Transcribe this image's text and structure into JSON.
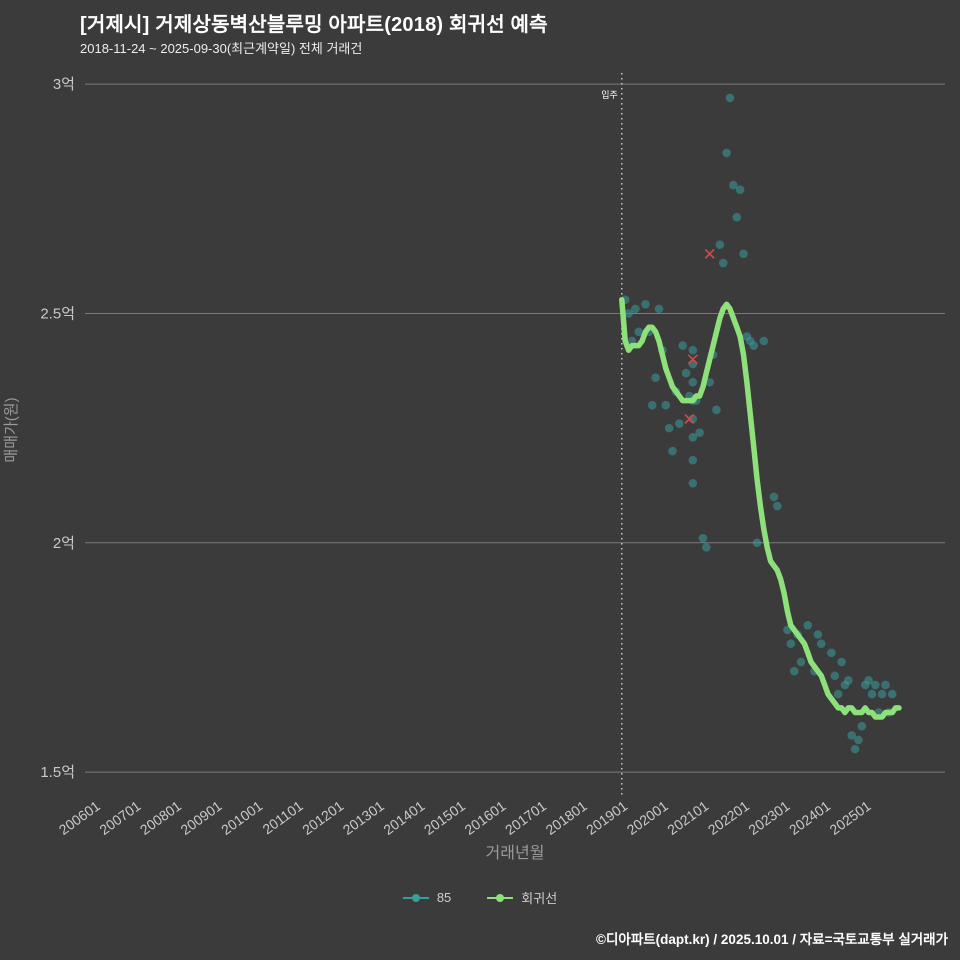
{
  "header": {
    "title": "[거제시] 거제상동벽산블루밍 아파트(2018) 회귀선 예측",
    "subtitle": "2018-11-24 ~ 2025-09-30(최근계약일) 전체 거래건"
  },
  "footer": {
    "text": "©디아파트(dapt.kr) / 2025.10.01 / 자료=국토교통부 실거래가"
  },
  "colors": {
    "background": "#3b3b3b",
    "grid": "#7a7a7a",
    "tick_text": "#c9c9c9",
    "axis_title_text": "#9a9a9a",
    "title_text": "#ffffff",
    "scatter": "#3a9d9d",
    "regression": "#8ee07a",
    "flag_x": "#cd4b4b",
    "movein_line": "#eaeaea"
  },
  "chart_data": {
    "type": "scatter",
    "title": "[거제시] 거제상동벽산블루밍 아파트(2018) 회귀선 예측",
    "xlabel": "거래년월",
    "ylabel": "매매가(원)",
    "xlim": [
      2005.6,
      2026.8
    ],
    "ylim": [
      1.45,
      3.02
    ],
    "grid": "horizontal-only",
    "legend_position": "bottom-center",
    "y_ticks": [
      {
        "label": "3억",
        "value": 3.0
      },
      {
        "label": "2.5억",
        "value": 2.5
      },
      {
        "label": "2억",
        "value": 2.0
      },
      {
        "label": "1.5억",
        "value": 1.5
      }
    ],
    "x_ticks": [
      "200601",
      "200701",
      "200801",
      "200901",
      "201001",
      "201101",
      "201201",
      "201301",
      "201401",
      "201501",
      "201601",
      "201701",
      "201801",
      "201901",
      "202001",
      "202101",
      "202201",
      "202301",
      "202401",
      "202501"
    ],
    "annotation": {
      "label": "입주",
      "x": "2018-11"
    },
    "series": [
      {
        "name": "85",
        "type": "scatter",
        "color": "#3a9d9d",
        "unit": "억원",
        "points": [
          [
            "2018-12",
            2.53
          ],
          [
            "2019-01",
            2.5
          ],
          [
            "2019-02",
            2.44
          ],
          [
            "2019-03",
            2.51
          ],
          [
            "2019-04",
            2.46
          ],
          [
            "2019-06",
            2.52
          ],
          [
            "2019-07",
            2.46
          ],
          [
            "2019-08",
            2.3
          ],
          [
            "2019-09",
            2.36
          ],
          [
            "2019-10",
            2.51
          ],
          [
            "2019-11",
            2.42
          ],
          [
            "2019-12",
            2.3
          ],
          [
            "2020-01",
            2.25
          ],
          [
            "2020-02",
            2.2
          ],
          [
            "2020-03",
            2.33
          ],
          [
            "2020-04",
            2.26
          ],
          [
            "2020-05",
            2.43
          ],
          [
            "2020-06",
            2.37
          ],
          [
            "2020-07",
            2.32
          ],
          [
            "2020-08",
            2.42
          ],
          [
            "2020-08",
            2.39
          ],
          [
            "2020-08",
            2.35
          ],
          [
            "2020-08",
            2.31
          ],
          [
            "2020-08",
            2.27
          ],
          [
            "2020-08",
            2.23
          ],
          [
            "2020-08",
            2.18
          ],
          [
            "2020-08",
            2.13
          ],
          [
            "2020-09",
            2.31
          ],
          [
            "2020-10",
            2.24
          ],
          [
            "2020-11",
            2.01
          ],
          [
            "2020-12",
            1.99
          ],
          [
            "2021-01",
            2.35
          ],
          [
            "2021-02",
            2.41
          ],
          [
            "2021-03",
            2.29
          ],
          [
            "2021-04",
            2.65
          ],
          [
            "2021-05",
            2.61
          ],
          [
            "2021-06",
            2.85
          ],
          [
            "2021-07",
            2.97
          ],
          [
            "2021-08",
            2.78
          ],
          [
            "2021-09",
            2.71
          ],
          [
            "2021-10",
            2.77
          ],
          [
            "2021-11",
            2.63
          ],
          [
            "2021-12",
            2.45
          ],
          [
            "2022-01",
            2.44
          ],
          [
            "2022-02",
            2.43
          ],
          [
            "2022-03",
            2.0
          ],
          [
            "2022-05",
            2.44
          ],
          [
            "2022-08",
            2.1
          ],
          [
            "2022-09",
            2.08
          ],
          [
            "2022-12",
            1.81
          ],
          [
            "2023-01",
            1.78
          ],
          [
            "2023-02",
            1.72
          ],
          [
            "2023-03",
            1.8
          ],
          [
            "2023-04",
            1.74
          ],
          [
            "2023-06",
            1.82
          ],
          [
            "2023-08",
            1.72
          ],
          [
            "2023-09",
            1.8
          ],
          [
            "2023-10",
            1.78
          ],
          [
            "2024-01",
            1.76
          ],
          [
            "2024-02",
            1.71
          ],
          [
            "2024-03",
            1.67
          ],
          [
            "2024-04",
            1.74
          ],
          [
            "2024-05",
            1.69
          ],
          [
            "2024-06",
            1.7
          ],
          [
            "2024-07",
            1.58
          ],
          [
            "2024-08",
            1.55
          ],
          [
            "2024-09",
            1.57
          ],
          [
            "2024-10",
            1.6
          ],
          [
            "2024-11",
            1.69
          ],
          [
            "2024-12",
            1.7
          ],
          [
            "2025-01",
            1.67
          ],
          [
            "2025-02",
            1.69
          ],
          [
            "2025-03",
            1.63
          ],
          [
            "2025-04",
            1.67
          ],
          [
            "2025-05",
            1.69
          ],
          [
            "2025-06",
            1.63
          ],
          [
            "2025-07",
            1.67
          ]
        ]
      },
      {
        "name": "회귀선",
        "type": "line",
        "color": "#8ee07a",
        "unit": "억원",
        "points": [
          [
            "2018-11",
            2.53
          ],
          [
            "2018-12",
            2.44
          ],
          [
            "2019-01",
            2.42
          ],
          [
            "2019-02",
            2.43
          ],
          [
            "2019-03",
            2.43
          ],
          [
            "2019-04",
            2.43
          ],
          [
            "2019-05",
            2.44
          ],
          [
            "2019-06",
            2.46
          ],
          [
            "2019-07",
            2.47
          ],
          [
            "2019-08",
            2.47
          ],
          [
            "2019-09",
            2.46
          ],
          [
            "2019-10",
            2.44
          ],
          [
            "2019-11",
            2.41
          ],
          [
            "2019-12",
            2.38
          ],
          [
            "2020-01",
            2.36
          ],
          [
            "2020-02",
            2.34
          ],
          [
            "2020-03",
            2.33
          ],
          [
            "2020-04",
            2.32
          ],
          [
            "2020-05",
            2.31
          ],
          [
            "2020-06",
            2.31
          ],
          [
            "2020-07",
            2.31
          ],
          [
            "2020-08",
            2.31
          ],
          [
            "2020-09",
            2.32
          ],
          [
            "2020-10",
            2.32
          ],
          [
            "2020-11",
            2.34
          ],
          [
            "2020-12",
            2.37
          ],
          [
            "2021-01",
            2.4
          ],
          [
            "2021-02",
            2.43
          ],
          [
            "2021-03",
            2.46
          ],
          [
            "2021-04",
            2.49
          ],
          [
            "2021-05",
            2.51
          ],
          [
            "2021-06",
            2.52
          ],
          [
            "2021-07",
            2.51
          ],
          [
            "2021-08",
            2.49
          ],
          [
            "2021-09",
            2.47
          ],
          [
            "2021-10",
            2.45
          ],
          [
            "2021-11",
            2.41
          ],
          [
            "2021-12",
            2.35
          ],
          [
            "2022-01",
            2.28
          ],
          [
            "2022-02",
            2.21
          ],
          [
            "2022-03",
            2.14
          ],
          [
            "2022-04",
            2.08
          ],
          [
            "2022-05",
            2.03
          ],
          [
            "2022-06",
            1.99
          ],
          [
            "2022-07",
            1.96
          ],
          [
            "2022-08",
            1.95
          ],
          [
            "2022-09",
            1.94
          ],
          [
            "2022-10",
            1.92
          ],
          [
            "2022-11",
            1.89
          ],
          [
            "2022-12",
            1.85
          ],
          [
            "2023-01",
            1.82
          ],
          [
            "2023-02",
            1.81
          ],
          [
            "2023-03",
            1.8
          ],
          [
            "2023-04",
            1.79
          ],
          [
            "2023-05",
            1.78
          ],
          [
            "2023-06",
            1.76
          ],
          [
            "2023-07",
            1.74
          ],
          [
            "2023-08",
            1.73
          ],
          [
            "2023-09",
            1.72
          ],
          [
            "2023-10",
            1.71
          ],
          [
            "2023-11",
            1.69
          ],
          [
            "2023-12",
            1.67
          ],
          [
            "2024-01",
            1.66
          ],
          [
            "2024-02",
            1.65
          ],
          [
            "2024-03",
            1.64
          ],
          [
            "2024-04",
            1.64
          ],
          [
            "2024-05",
            1.63
          ],
          [
            "2024-06",
            1.64
          ],
          [
            "2024-07",
            1.64
          ],
          [
            "2024-08",
            1.63
          ],
          [
            "2024-09",
            1.63
          ],
          [
            "2024-10",
            1.63
          ],
          [
            "2024-11",
            1.64
          ],
          [
            "2024-12",
            1.63
          ],
          [
            "2025-01",
            1.63
          ],
          [
            "2025-02",
            1.62
          ],
          [
            "2025-03",
            1.62
          ],
          [
            "2025-04",
            1.62
          ],
          [
            "2025-05",
            1.63
          ],
          [
            "2025-06",
            1.63
          ],
          [
            "2025-07",
            1.63
          ],
          [
            "2025-08",
            1.64
          ],
          [
            "2025-09",
            1.64
          ]
        ]
      }
    ],
    "flagged_points": {
      "marker": "x",
      "color": "#cd4b4b",
      "points": [
        [
          "2020-07",
          2.27
        ],
        [
          "2020-08",
          2.4
        ],
        [
          "2021-01",
          2.63
        ]
      ]
    }
  }
}
